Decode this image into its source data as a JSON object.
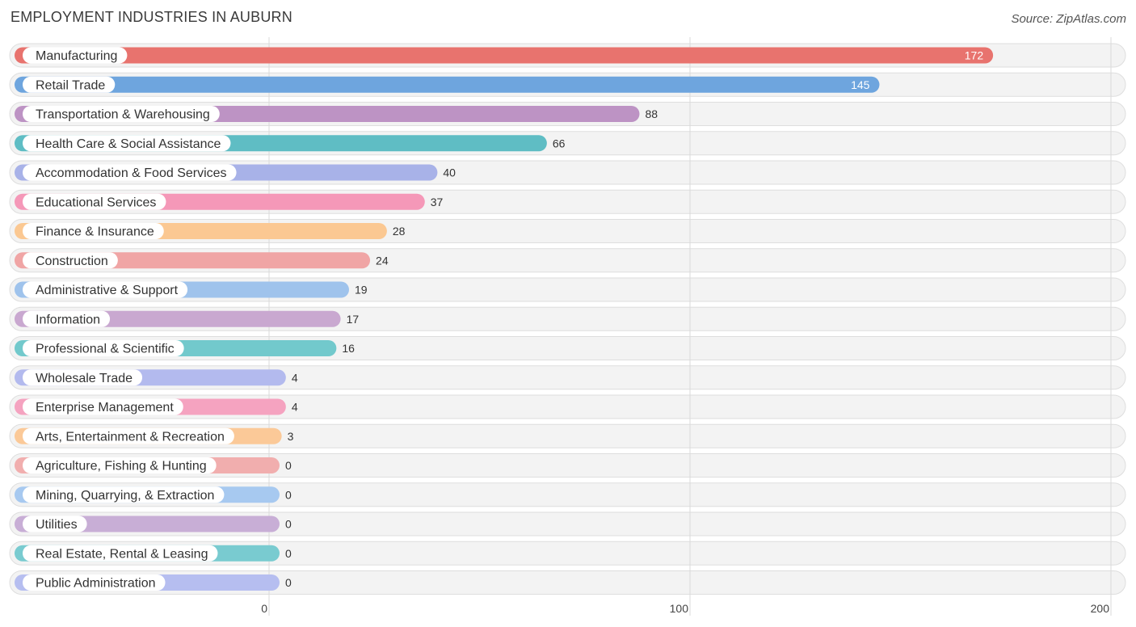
{
  "header": {
    "title": "EMPLOYMENT INDUSTRIES IN AUBURN",
    "source": "Source: ZipAtlas.com"
  },
  "chart_data": {
    "type": "bar",
    "orientation": "horizontal",
    "title": "EMPLOYMENT INDUSTRIES IN AUBURN",
    "xlabel": "",
    "ylabel": "",
    "xlim": [
      0,
      200
    ],
    "xticks": [
      0,
      100,
      200
    ],
    "grid": true,
    "categories": [
      "Manufacturing",
      "Retail Trade",
      "Transportation & Warehousing",
      "Health Care & Social Assistance",
      "Accommodation & Food Services",
      "Educational Services",
      "Finance & Insurance",
      "Construction",
      "Administrative & Support",
      "Information",
      "Professional & Scientific",
      "Wholesale Trade",
      "Enterprise Management",
      "Arts, Entertainment & Recreation",
      "Agriculture, Fishing & Hunting",
      "Mining, Quarrying, & Extraction",
      "Utilities",
      "Real Estate, Rental & Leasing",
      "Public Administration"
    ],
    "values": [
      172,
      145,
      88,
      66,
      40,
      37,
      28,
      24,
      19,
      17,
      16,
      4,
      4,
      3,
      0,
      0,
      0,
      0,
      0
    ],
    "colors": [
      "#e8736e",
      "#6ea5de",
      "#bd93c4",
      "#5fbdc4",
      "#a8b2e8",
      "#f598b8",
      "#fbc892",
      "#f0a5a5",
      "#9fc3ec",
      "#c9a8d0",
      "#72c9cc",
      "#b3baee",
      "#f5a3c0",
      "#fbc998",
      "#f1aeae",
      "#a7c9f0",
      "#c8aed6",
      "#79cbd0",
      "#b6bef0"
    ]
  }
}
